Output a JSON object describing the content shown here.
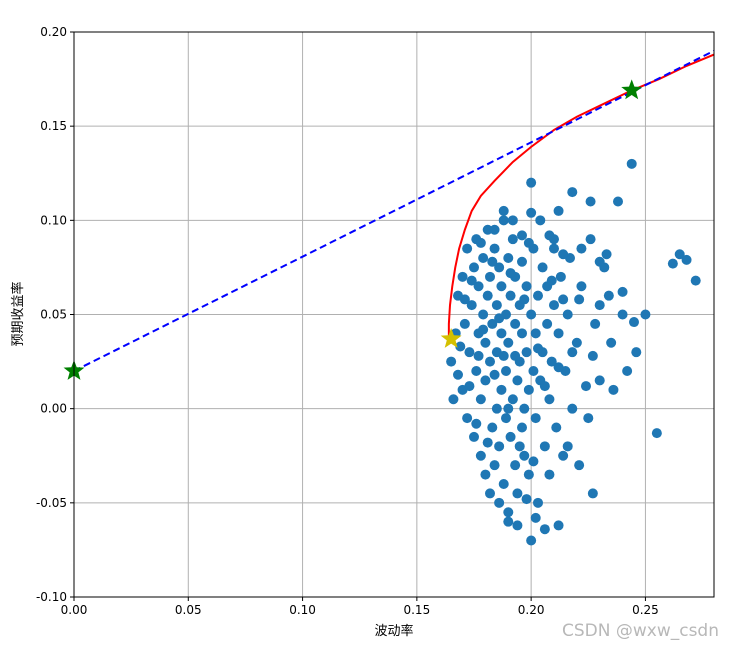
{
  "chart_data": {
    "type": "scatter",
    "xlabel": "波动率",
    "ylabel": "预期收益率",
    "xlim": [
      0.0,
      0.28
    ],
    "ylim": [
      -0.1,
      0.2
    ],
    "xticks": [
      0.0,
      0.05,
      0.1,
      0.15,
      0.2,
      0.25
    ],
    "xtick_labels": [
      "0.00",
      "0.05",
      "0.10",
      "0.15",
      "0.20",
      "0.25"
    ],
    "yticks": [
      -0.1,
      -0.05,
      0.0,
      0.05,
      0.1,
      0.15,
      0.2
    ],
    "ytick_labels": [
      "-0.10",
      "-0.05",
      "0.00",
      "0.05",
      "0.10",
      "0.15",
      "0.20"
    ],
    "grid": true,
    "series": [
      {
        "type": "scatter",
        "color": "#1f77b4",
        "points": [
          [
            0.165,
            0.025
          ],
          [
            0.167,
            0.04
          ],
          [
            0.168,
            0.06
          ],
          [
            0.17,
            0.01
          ],
          [
            0.17,
            0.07
          ],
          [
            0.171,
            0.045
          ],
          [
            0.172,
            -0.005
          ],
          [
            0.172,
            0.085
          ],
          [
            0.173,
            0.03
          ],
          [
            0.174,
            0.055
          ],
          [
            0.175,
            -0.015
          ],
          [
            0.175,
            0.075
          ],
          [
            0.176,
            0.02
          ],
          [
            0.176,
            0.09
          ],
          [
            0.177,
            0.04
          ],
          [
            0.177,
            0.065
          ],
          [
            0.178,
            -0.025
          ],
          [
            0.178,
            0.005
          ],
          [
            0.179,
            0.05
          ],
          [
            0.179,
            0.08
          ],
          [
            0.18,
            -0.035
          ],
          [
            0.18,
            0.015
          ],
          [
            0.18,
            0.035
          ],
          [
            0.181,
            0.06
          ],
          [
            0.181,
            0.095
          ],
          [
            0.182,
            -0.045
          ],
          [
            0.182,
            0.025
          ],
          [
            0.182,
            0.07
          ],
          [
            0.183,
            -0.01
          ],
          [
            0.183,
            0.045
          ],
          [
            0.184,
            0.085
          ],
          [
            0.184,
            -0.03
          ],
          [
            0.185,
            0.0
          ],
          [
            0.185,
            0.03
          ],
          [
            0.185,
            0.055
          ],
          [
            0.186,
            0.075
          ],
          [
            0.186,
            -0.02
          ],
          [
            0.187,
            0.01
          ],
          [
            0.187,
            0.04
          ],
          [
            0.187,
            0.065
          ],
          [
            0.188,
            0.1
          ],
          [
            0.188,
            -0.04
          ],
          [
            0.189,
            -0.005
          ],
          [
            0.189,
            0.02
          ],
          [
            0.189,
            0.05
          ],
          [
            0.19,
            0.08
          ],
          [
            0.19,
            -0.055
          ],
          [
            0.19,
            0.035
          ],
          [
            0.191,
            0.06
          ],
          [
            0.191,
            -0.015
          ],
          [
            0.192,
            0.005
          ],
          [
            0.192,
            0.09
          ],
          [
            0.193,
            -0.03
          ],
          [
            0.193,
            0.045
          ],
          [
            0.193,
            0.07
          ],
          [
            0.194,
            0.015
          ],
          [
            0.194,
            -0.045
          ],
          [
            0.195,
            0.025
          ],
          [
            0.195,
            0.055
          ],
          [
            0.196,
            -0.01
          ],
          [
            0.196,
            0.04
          ],
          [
            0.196,
            0.078
          ],
          [
            0.197,
            -0.025
          ],
          [
            0.197,
            0.0
          ],
          [
            0.198,
            0.03
          ],
          [
            0.198,
            0.065
          ],
          [
            0.199,
            -0.035
          ],
          [
            0.199,
            0.01
          ],
          [
            0.2,
            0.05
          ],
          [
            0.2,
            0.12
          ],
          [
            0.2,
            -0.07
          ],
          [
            0.201,
            0.02
          ],
          [
            0.201,
            0.085
          ],
          [
            0.202,
            -0.005
          ],
          [
            0.202,
            0.04
          ],
          [
            0.203,
            0.06
          ],
          [
            0.203,
            -0.05
          ],
          [
            0.204,
            0.015
          ],
          [
            0.205,
            0.03
          ],
          [
            0.205,
            0.075
          ],
          [
            0.206,
            -0.02
          ],
          [
            0.207,
            0.045
          ],
          [
            0.207,
            0.065
          ],
          [
            0.208,
            0.005
          ],
          [
            0.208,
            -0.035
          ],
          [
            0.209,
            0.025
          ],
          [
            0.21,
            0.055
          ],
          [
            0.21,
            0.09
          ],
          [
            0.211,
            -0.01
          ],
          [
            0.212,
            0.04
          ],
          [
            0.213,
            0.07
          ],
          [
            0.214,
            -0.025
          ],
          [
            0.215,
            0.02
          ],
          [
            0.216,
            0.05
          ],
          [
            0.217,
            0.08
          ],
          [
            0.218,
            0.0
          ],
          [
            0.22,
            0.035
          ],
          [
            0.222,
            0.065
          ],
          [
            0.225,
            -0.005
          ],
          [
            0.228,
            0.045
          ],
          [
            0.23,
            0.015
          ],
          [
            0.232,
            0.075
          ],
          [
            0.235,
            0.035
          ],
          [
            0.238,
            0.11
          ],
          [
            0.24,
            0.062
          ],
          [
            0.242,
            0.02
          ],
          [
            0.244,
            0.13
          ],
          [
            0.246,
            0.03
          ],
          [
            0.25,
            0.05
          ],
          [
            0.255,
            -0.013
          ],
          [
            0.262,
            0.077
          ],
          [
            0.265,
            0.082
          ],
          [
            0.268,
            0.079
          ],
          [
            0.272,
            0.068
          ],
          [
            0.166,
            0.005
          ],
          [
            0.168,
            0.018
          ],
          [
            0.169,
            0.033
          ],
          [
            0.171,
            0.058
          ],
          [
            0.173,
            0.012
          ],
          [
            0.174,
            0.068
          ],
          [
            0.176,
            -0.008
          ],
          [
            0.177,
            0.028
          ],
          [
            0.178,
            0.088
          ],
          [
            0.179,
            0.042
          ],
          [
            0.181,
            -0.018
          ],
          [
            0.183,
            0.078
          ],
          [
            0.184,
            0.018
          ],
          [
            0.186,
            0.048
          ],
          [
            0.188,
            0.028
          ],
          [
            0.19,
            0.0
          ],
          [
            0.191,
            0.072
          ],
          [
            0.193,
            0.028
          ],
          [
            0.195,
            -0.02
          ],
          [
            0.197,
            0.058
          ],
          [
            0.199,
            0.088
          ],
          [
            0.201,
            -0.028
          ],
          [
            0.203,
            0.032
          ],
          [
            0.206,
            0.012
          ],
          [
            0.209,
            0.068
          ],
          [
            0.212,
            0.022
          ],
          [
            0.214,
            0.058
          ],
          [
            0.218,
            0.03
          ],
          [
            0.221,
            0.058
          ],
          [
            0.224,
            0.012
          ],
          [
            0.227,
            0.028
          ],
          [
            0.23,
            0.055
          ],
          [
            0.233,
            0.082
          ],
          [
            0.236,
            0.01
          ],
          [
            0.186,
            -0.05
          ],
          [
            0.19,
            -0.06
          ],
          [
            0.194,
            -0.062
          ],
          [
            0.198,
            -0.048
          ],
          [
            0.202,
            -0.058
          ],
          [
            0.206,
            -0.064
          ],
          [
            0.212,
            -0.062
          ],
          [
            0.216,
            -0.02
          ],
          [
            0.221,
            -0.03
          ],
          [
            0.227,
            -0.045
          ],
          [
            0.184,
            0.095
          ],
          [
            0.188,
            0.105
          ],
          [
            0.192,
            0.1
          ],
          [
            0.196,
            0.092
          ],
          [
            0.2,
            0.104
          ],
          [
            0.204,
            0.1
          ],
          [
            0.208,
            0.092
          ],
          [
            0.212,
            0.105
          ],
          [
            0.218,
            0.115
          ],
          [
            0.226,
            0.11
          ],
          [
            0.21,
            0.085
          ],
          [
            0.214,
            0.082
          ],
          [
            0.222,
            0.085
          ],
          [
            0.226,
            0.09
          ],
          [
            0.23,
            0.078
          ],
          [
            0.234,
            0.06
          ],
          [
            0.24,
            0.05
          ],
          [
            0.245,
            0.046
          ]
        ]
      },
      {
        "type": "line",
        "color": "#ff0000",
        "points": [
          [
            0.164,
            0.037
          ],
          [
            0.164,
            0.045
          ],
          [
            0.1645,
            0.055
          ],
          [
            0.1655,
            0.065
          ],
          [
            0.1668,
            0.075
          ],
          [
            0.1685,
            0.085
          ],
          [
            0.171,
            0.095
          ],
          [
            0.174,
            0.105
          ],
          [
            0.178,
            0.113
          ],
          [
            0.184,
            0.121
          ],
          [
            0.192,
            0.131
          ],
          [
            0.2,
            0.139
          ],
          [
            0.21,
            0.148
          ],
          [
            0.22,
            0.155
          ],
          [
            0.232,
            0.162
          ],
          [
            0.244,
            0.169
          ],
          [
            0.256,
            0.175
          ],
          [
            0.268,
            0.182
          ],
          [
            0.28,
            0.188
          ]
        ]
      },
      {
        "type": "line",
        "color": "#0000ff",
        "dashed": true,
        "points": [
          [
            0.0,
            0.02
          ],
          [
            0.28,
            0.19
          ]
        ]
      },
      {
        "type": "markers",
        "shape": "star",
        "color": "#008000",
        "points": [
          [
            0.0,
            0.02
          ],
          [
            0.244,
            0.169
          ]
        ]
      },
      {
        "type": "markers",
        "shape": "star",
        "color": "#d4c000",
        "points": [
          [
            0.165,
            0.037
          ]
        ]
      }
    ]
  },
  "watermark": "CSDN @wxw_csdn"
}
